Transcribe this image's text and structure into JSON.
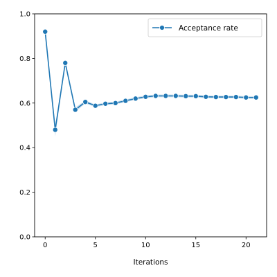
{
  "chart_data": {
    "type": "line",
    "title": "",
    "xlabel": "Iterations",
    "ylabel": "",
    "xlim": [
      -1.05,
      22.05
    ],
    "ylim": [
      0.0,
      1.0
    ],
    "xticks": [
      0,
      5,
      10,
      15,
      20
    ],
    "xtick_labels": [
      "0",
      "5",
      "10",
      "15",
      "20"
    ],
    "yticks": [
      0.0,
      0.2,
      0.4,
      0.6,
      0.8,
      1.0
    ],
    "ytick_labels": [
      "0.0",
      "0.2",
      "0.4",
      "0.6",
      "0.8",
      "1.0"
    ],
    "grid": false,
    "legend_position": "top-right",
    "series": [
      {
        "name": "Acceptance rate",
        "color": "#1f77b4",
        "marker": "circle",
        "x": [
          0,
          1,
          2,
          3,
          4,
          5,
          6,
          7,
          8,
          9,
          10,
          11,
          12,
          13,
          14,
          15,
          16,
          17,
          18,
          19,
          20,
          21
        ],
        "y": [
          0.92,
          0.48,
          0.78,
          0.57,
          0.605,
          0.588,
          0.597,
          0.6,
          0.61,
          0.62,
          0.628,
          0.632,
          0.632,
          0.632,
          0.631,
          0.631,
          0.628,
          0.627,
          0.627,
          0.627,
          0.625,
          0.625
        ],
        "band_lower": [
          0.915,
          0.45,
          0.77,
          0.56,
          0.598,
          0.582,
          0.591,
          0.594,
          0.604,
          0.614,
          0.622,
          0.626,
          0.626,
          0.626,
          0.625,
          0.625,
          0.622,
          0.621,
          0.621,
          0.621,
          0.619,
          0.619
        ],
        "band_upper": [
          0.925,
          0.5,
          0.79,
          0.58,
          0.612,
          0.594,
          0.603,
          0.606,
          0.616,
          0.626,
          0.634,
          0.638,
          0.638,
          0.638,
          0.637,
          0.637,
          0.634,
          0.633,
          0.633,
          0.633,
          0.631,
          0.631
        ]
      }
    ]
  }
}
